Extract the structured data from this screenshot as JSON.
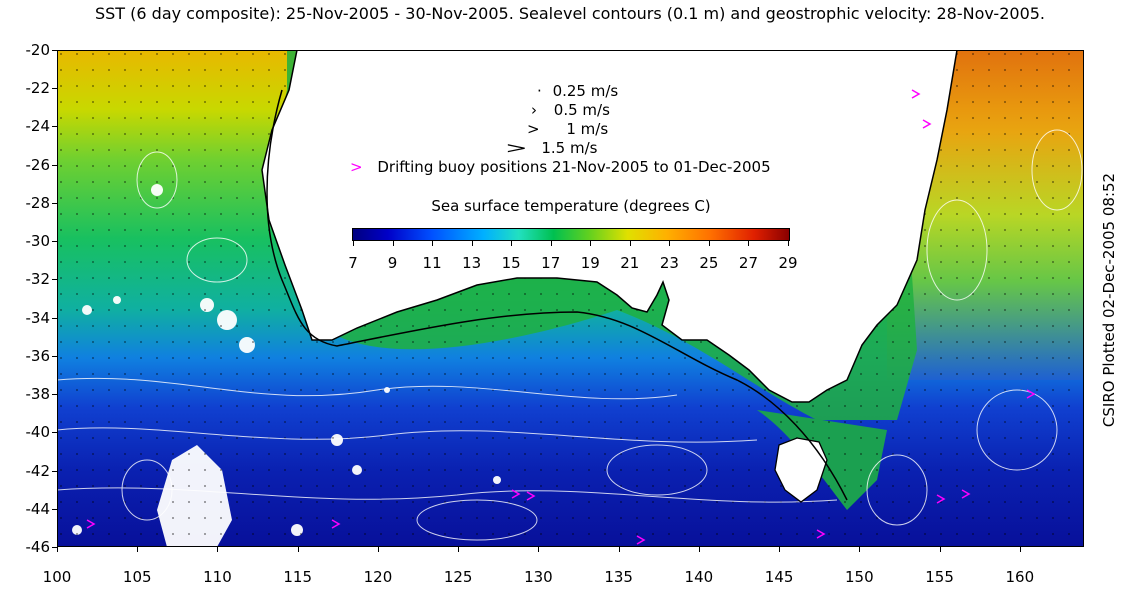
{
  "title": "SST (6 day composite): 25-Nov-2005 - 30-Nov-2005. Sealevel contours (0.1 m) and geostrophic velocity: 28-Nov-2005.",
  "side_label": "CSIRO Plotted 02-Dec-2005 08:52",
  "velocity_legend": [
    {
      "label": "0.25 m/s",
      "arrow": "·"
    },
    {
      "label": "0.5 m/s",
      "arrow": "›"
    },
    {
      "label": "1 m/s",
      "arrow": ">"
    },
    {
      "label": "1.5 m/s",
      "arrow": ">"
    }
  ],
  "buoy_legend": {
    "symbol": ">",
    "label": "Drifting buoy positions 21-Nov-2005 to 01-Dec-2005",
    "color": "#ff00ff"
  },
  "colorbar": {
    "title": "Sea surface temperature (degrees C)",
    "ticks": [
      "7",
      "9",
      "11",
      "13",
      "15",
      "17",
      "19",
      "21",
      "23",
      "25",
      "27",
      "29"
    ]
  },
  "y_axis_labels": [
    "-20",
    "-22",
    "-24",
    "-26",
    "-28",
    "-30",
    "-32",
    "-34",
    "-36",
    "-38",
    "-40",
    "-42",
    "-44",
    "-46"
  ],
  "x_axis_labels": [
    "100",
    "105",
    "110",
    "115",
    "120",
    "125",
    "130",
    "135",
    "140",
    "145",
    "150",
    "155",
    "160"
  ],
  "map_region": {
    "lon_min": 100,
    "lon_max": 164,
    "lat_min": -46,
    "lat_max": -20
  },
  "colors": {
    "land": "#ffffff",
    "buoy": "#ff00ff",
    "contour": "#ffffff",
    "coast": "#000000"
  }
}
